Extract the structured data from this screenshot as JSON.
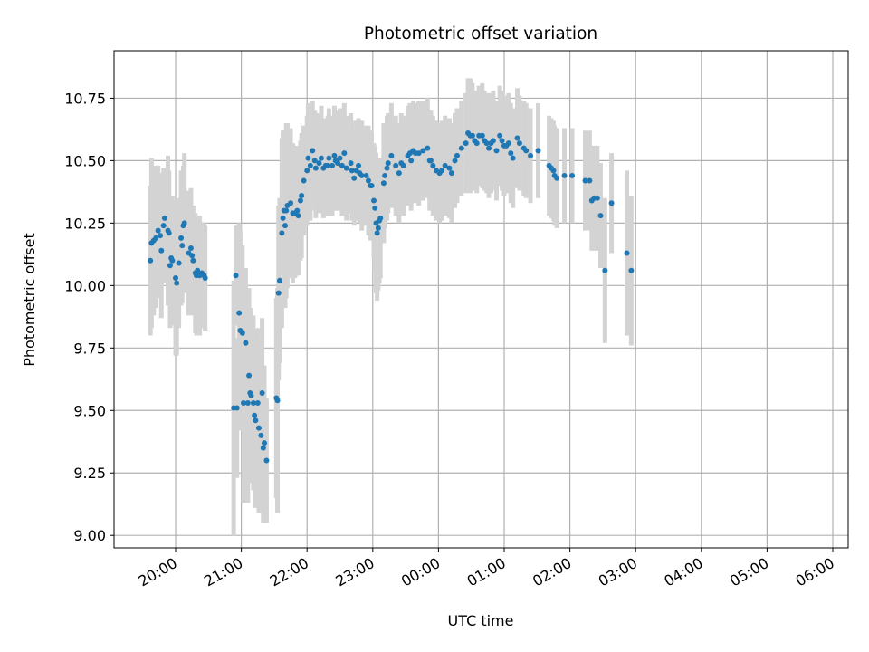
{
  "chart_data": {
    "type": "scatter",
    "title": "Photometric offset variation",
    "xlabel": "UTC time",
    "ylabel": "Photometric offset",
    "grid": true,
    "x_tick_labels": [
      "20:00",
      "21:00",
      "22:00",
      "23:00",
      "00:00",
      "01:00",
      "02:00",
      "03:00",
      "04:00",
      "05:00",
      "06:00"
    ],
    "y_tick_labels": [
      "9.00",
      "9.25",
      "9.50",
      "9.75",
      "10.00",
      "10.25",
      "10.50",
      "10.75"
    ],
    "ylim": [
      8.95,
      10.94
    ],
    "colors": {
      "points": "#1f77b4",
      "error_bars": "#d3d3d3",
      "grid": "#b0b0b0"
    },
    "points": [
      [
        "19:37",
        10.1,
        0.3
      ],
      [
        "19:38",
        10.17,
        0.34
      ],
      [
        "19:40",
        10.18,
        0.3
      ],
      [
        "19:42",
        10.19,
        0.28
      ],
      [
        "19:44",
        10.22,
        0.26
      ],
      [
        "19:46",
        10.2,
        0.25
      ],
      [
        "19:47",
        10.14,
        0.27
      ],
      [
        "19:49",
        10.24,
        0.23
      ],
      [
        "19:50",
        10.27,
        0.2
      ],
      [
        "19:53",
        10.22,
        0.3
      ],
      [
        "19:54",
        10.21,
        0.25
      ],
      [
        "19:55",
        10.08,
        0.25
      ],
      [
        "19:56",
        10.11,
        0.22
      ],
      [
        "19:57",
        10.1,
        0.26
      ],
      [
        "20:00",
        10.03,
        0.31
      ],
      [
        "20:01",
        10.01,
        0.29
      ],
      [
        "20:03",
        10.09,
        0.26
      ],
      [
        "20:05",
        10.19,
        0.27
      ],
      [
        "20:06",
        10.16,
        0.23
      ],
      [
        "20:07",
        10.24,
        0.24
      ],
      [
        "20:08",
        10.25,
        0.28
      ],
      [
        "20:12",
        10.13,
        0.25
      ],
      [
        "20:14",
        10.15,
        0.24
      ],
      [
        "20:15",
        10.12,
        0.2
      ],
      [
        "20:16",
        10.1,
        0.22
      ],
      [
        "20:18",
        10.05,
        0.24
      ],
      [
        "20:19",
        10.04,
        0.24
      ],
      [
        "20:20",
        10.06,
        0.22
      ],
      [
        "20:22",
        10.04,
        0.24
      ],
      [
        "20:24",
        10.05,
        0.2
      ],
      [
        "20:26",
        10.04,
        0.21
      ],
      [
        "20:27",
        10.03,
        0.21
      ],
      [
        "20:55",
        10.04,
        0.2
      ],
      [
        "20:53",
        9.51,
        0.51
      ],
      [
        "20:56",
        9.51,
        0.28
      ],
      [
        "20:58",
        9.89,
        0.36
      ],
      [
        "20:59",
        9.82,
        0.4
      ],
      [
        "21:01",
        9.81,
        0.35
      ],
      [
        "21:02",
        9.53,
        0.4
      ],
      [
        "21:04",
        9.77,
        0.3
      ],
      [
        "21:06",
        9.53,
        0.4
      ],
      [
        "21:07",
        9.64,
        0.35
      ],
      [
        "21:08",
        9.57,
        0.3
      ],
      [
        "21:09",
        9.56,
        0.35
      ],
      [
        "21:11",
        9.53,
        0.35
      ],
      [
        "21:12",
        9.48,
        0.3
      ],
      [
        "21:13",
        9.46,
        0.35
      ],
      [
        "21:15",
        9.53,
        0.3
      ],
      [
        "21:16",
        9.43,
        0.34
      ],
      [
        "21:18",
        9.4,
        0.3
      ],
      [
        "21:19",
        9.57,
        0.3
      ],
      [
        "21:20",
        9.35,
        0.3
      ],
      [
        "21:21",
        9.37,
        0.31
      ],
      [
        "21:23",
        9.3,
        0.25
      ],
      [
        "21:32",
        9.55,
        0.4
      ],
      [
        "21:33",
        9.54,
        0.45
      ],
      [
        "21:34",
        9.97,
        0.35
      ],
      [
        "21:35",
        10.02,
        0.33
      ],
      [
        "21:37",
        10.21,
        0.38
      ],
      [
        "21:38",
        10.27,
        0.35
      ],
      [
        "21:39",
        10.3,
        0.32
      ],
      [
        "21:40",
        10.24,
        0.33
      ],
      [
        "21:41",
        10.3,
        0.35
      ],
      [
        "21:42",
        10.32,
        0.33
      ],
      [
        "21:45",
        10.33,
        0.3
      ],
      [
        "21:47",
        10.29,
        0.28
      ],
      [
        "21:49",
        10.29,
        0.26
      ],
      [
        "21:51",
        10.3,
        0.26
      ],
      [
        "21:52",
        10.28,
        0.24
      ],
      [
        "21:54",
        10.34,
        0.24
      ],
      [
        "21:55",
        10.36,
        0.25
      ],
      [
        "21:57",
        10.42,
        0.22
      ],
      [
        "22:00",
        10.46,
        0.22
      ],
      [
        "22:01",
        10.51,
        0.22
      ],
      [
        "22:03",
        10.48,
        0.22
      ],
      [
        "22:05",
        10.54,
        0.2
      ],
      [
        "22:07",
        10.5,
        0.2
      ],
      [
        "22:08",
        10.47,
        0.2
      ],
      [
        "22:11",
        10.49,
        0.2
      ],
      [
        "22:13",
        10.51,
        0.21
      ],
      [
        "22:15",
        10.47,
        0.2
      ],
      [
        "22:17",
        10.48,
        0.19
      ],
      [
        "22:19",
        10.48,
        0.2
      ],
      [
        "22:20",
        10.51,
        0.2
      ],
      [
        "22:23",
        10.48,
        0.2
      ],
      [
        "22:25",
        10.52,
        0.2
      ],
      [
        "22:26",
        10.5,
        0.2
      ],
      [
        "22:28",
        10.49,
        0.19
      ],
      [
        "22:30",
        10.51,
        0.2
      ],
      [
        "22:32",
        10.48,
        0.2
      ],
      [
        "22:34",
        10.53,
        0.2
      ],
      [
        "22:36",
        10.47,
        0.21
      ],
      [
        "22:40",
        10.49,
        0.2
      ],
      [
        "22:41",
        10.46,
        0.2
      ],
      [
        "22:43",
        10.43,
        0.19
      ],
      [
        "22:45",
        10.46,
        0.2
      ],
      [
        "22:47",
        10.48,
        0.19
      ],
      [
        "22:48",
        10.45,
        0.2
      ],
      [
        "22:50",
        10.44,
        0.22
      ],
      [
        "22:54",
        10.44,
        0.2
      ],
      [
        "22:56",
        10.42,
        0.22
      ],
      [
        "22:58",
        10.4,
        0.22
      ],
      [
        "22:59",
        10.4,
        0.21
      ],
      [
        "23:01",
        10.34,
        0.23
      ],
      [
        "23:02",
        10.31,
        0.25
      ],
      [
        "23:03",
        10.25,
        0.28
      ],
      [
        "23:04",
        10.21,
        0.27
      ],
      [
        "23:05",
        10.23,
        0.25
      ],
      [
        "23:06",
        10.26,
        0.25
      ],
      [
        "23:07",
        10.27,
        0.24
      ],
      [
        "23:10",
        10.41,
        0.24
      ],
      [
        "23:11",
        10.44,
        0.21
      ],
      [
        "23:13",
        10.47,
        0.21
      ],
      [
        "23:14",
        10.49,
        0.2
      ],
      [
        "23:17",
        10.52,
        0.21
      ],
      [
        "23:21",
        10.48,
        0.2
      ],
      [
        "23:24",
        10.45,
        0.2
      ],
      [
        "23:26",
        10.49,
        0.2
      ],
      [
        "23:28",
        10.48,
        0.2
      ],
      [
        "23:32",
        10.52,
        0.2
      ],
      [
        "23:34",
        10.53,
        0.2
      ],
      [
        "23:35",
        10.5,
        0.2
      ],
      [
        "23:37",
        10.54,
        0.2
      ],
      [
        "23:39",
        10.53,
        0.2
      ],
      [
        "23:42",
        10.53,
        0.21
      ],
      [
        "23:46",
        10.54,
        0.2
      ],
      [
        "23:50",
        10.55,
        0.2
      ],
      [
        "23:52",
        10.5,
        0.2
      ],
      [
        "23:53",
        10.5,
        0.2
      ],
      [
        "23:55",
        10.48,
        0.2
      ],
      [
        "23:58",
        10.46,
        0.2
      ],
      [
        "00:01",
        10.45,
        0.2
      ],
      [
        "00:03",
        10.46,
        0.2
      ],
      [
        "00:06",
        10.48,
        0.2
      ],
      [
        "00:10",
        10.47,
        0.2
      ],
      [
        "00:12",
        10.45,
        0.2
      ],
      [
        "00:15",
        10.5,
        0.19
      ],
      [
        "00:17",
        10.52,
        0.19
      ],
      [
        "00:21",
        10.55,
        0.19
      ],
      [
        "00:25",
        10.57,
        0.2
      ],
      [
        "00:27",
        10.61,
        0.22
      ],
      [
        "00:29",
        10.6,
        0.23
      ],
      [
        "00:31",
        10.6,
        0.21
      ],
      [
        "00:33",
        10.58,
        0.2
      ],
      [
        "00:35",
        10.57,
        0.2
      ],
      [
        "00:37",
        10.6,
        0.2
      ],
      [
        "00:40",
        10.6,
        0.21
      ],
      [
        "00:42",
        10.58,
        0.2
      ],
      [
        "00:44",
        10.57,
        0.2
      ],
      [
        "00:46",
        10.55,
        0.2
      ],
      [
        "00:48",
        10.57,
        0.2
      ],
      [
        "00:50",
        10.58,
        0.2
      ],
      [
        "00:53",
        10.54,
        0.2
      ],
      [
        "00:56",
        10.6,
        0.2
      ],
      [
        "00:58",
        10.58,
        0.2
      ],
      [
        "01:00",
        10.56,
        0.2
      ],
      [
        "01:02",
        10.56,
        0.19
      ],
      [
        "01:04",
        10.57,
        0.2
      ],
      [
        "01:06",
        10.53,
        0.2
      ],
      [
        "01:08",
        10.51,
        0.2
      ],
      [
        "01:12",
        10.59,
        0.2
      ],
      [
        "01:14",
        10.57,
        0.19
      ],
      [
        "01:18",
        10.55,
        0.19
      ],
      [
        "01:20",
        10.54,
        0.19
      ],
      [
        "01:24",
        10.52,
        0.19
      ],
      [
        "01:31",
        10.54,
        0.19
      ],
      [
        "01:41",
        10.48,
        0.2
      ],
      [
        "01:43",
        10.47,
        0.2
      ],
      [
        "01:45",
        10.46,
        0.2
      ],
      [
        "01:46",
        10.44,
        0.2
      ],
      [
        "01:48",
        10.43,
        0.2
      ],
      [
        "01:55",
        10.44,
        0.19
      ],
      [
        "02:02",
        10.44,
        0.19
      ],
      [
        "02:14",
        10.42,
        0.2
      ],
      [
        "02:18",
        10.42,
        0.2
      ],
      [
        "02:20",
        10.34,
        0.2
      ],
      [
        "02:22",
        10.35,
        0.21
      ],
      [
        "02:25",
        10.35,
        0.21
      ],
      [
        "02:28",
        10.28,
        0.21
      ],
      [
        "02:32",
        10.06,
        0.29
      ],
      [
        "02:38",
        10.33,
        0.2
      ],
      [
        "02:52",
        10.13,
        0.33
      ],
      [
        "02:56",
        10.06,
        0.3
      ]
    ]
  }
}
